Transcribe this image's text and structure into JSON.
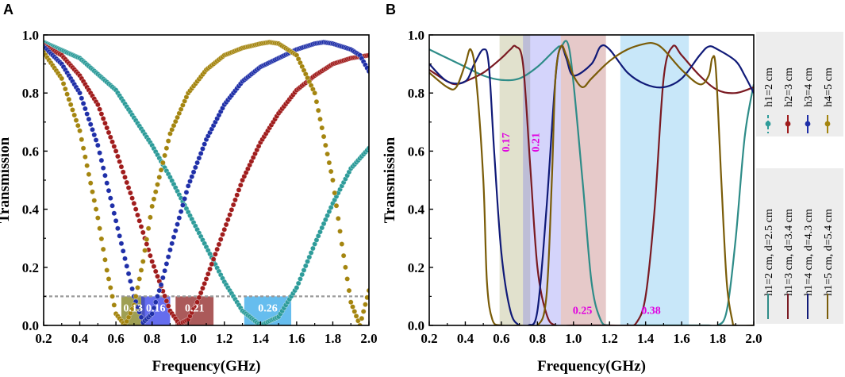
{
  "chart_data": [
    {
      "panel": "A",
      "type": "line",
      "xlabel": "Frequency(GHz)",
      "ylabel": "Transmission",
      "xlim": [
        0.2,
        2.0
      ],
      "ylim": [
        0.0,
        1.0
      ],
      "xticks": [
        "0.2",
        "0.4",
        "0.6",
        "0.8",
        "1.0",
        "1.2",
        "1.4",
        "1.6",
        "1.8",
        "2.0"
      ],
      "yticks": [
        "0.0",
        "0.2",
        "0.4",
        "0.6",
        "0.8",
        "1.0"
      ],
      "threshold": 0.1,
      "series": [
        {
          "name": "h1=2 cm",
          "color": "#2E9C9A",
          "x": [
            0.2,
            0.4,
            0.6,
            0.8,
            0.9,
            1.0,
            1.1,
            1.2,
            1.3,
            1.4,
            1.5,
            1.6,
            1.7,
            1.8,
            1.9,
            2.0
          ],
          "y": [
            0.975,
            0.92,
            0.81,
            0.62,
            0.51,
            0.39,
            0.27,
            0.15,
            0.05,
            0.0,
            0.03,
            0.13,
            0.28,
            0.42,
            0.54,
            0.61
          ]
        },
        {
          "name": "h2=3 cm",
          "color": "#A01C1C",
          "x": [
            0.2,
            0.3,
            0.4,
            0.5,
            0.6,
            0.7,
            0.8,
            0.9,
            0.95,
            1.0,
            1.05,
            1.1,
            1.2,
            1.3,
            1.4,
            1.5,
            1.6,
            1.7,
            1.8,
            1.9,
            2.0
          ],
          "y": [
            0.965,
            0.93,
            0.86,
            0.76,
            0.6,
            0.42,
            0.22,
            0.05,
            0.005,
            0.02,
            0.08,
            0.16,
            0.33,
            0.5,
            0.63,
            0.73,
            0.81,
            0.86,
            0.9,
            0.92,
            0.93
          ]
        },
        {
          "name": "h3=4 cm",
          "color": "#1F2FA8",
          "x": [
            0.2,
            0.3,
            0.4,
            0.5,
            0.6,
            0.7,
            0.75,
            0.8,
            0.85,
            0.9,
            1.0,
            1.1,
            1.2,
            1.3,
            1.4,
            1.5,
            1.6,
            1.7,
            1.75,
            1.8,
            1.9,
            1.95,
            2.0
          ],
          "y": [
            0.96,
            0.9,
            0.8,
            0.62,
            0.36,
            0.1,
            0.01,
            0.04,
            0.14,
            0.26,
            0.48,
            0.64,
            0.76,
            0.84,
            0.89,
            0.92,
            0.95,
            0.97,
            0.975,
            0.97,
            0.95,
            0.93,
            0.875
          ]
        },
        {
          "name": "h4=5 cm",
          "color": "#A4850F",
          "x": [
            0.2,
            0.3,
            0.4,
            0.5,
            0.55,
            0.6,
            0.65,
            0.7,
            0.75,
            0.8,
            0.9,
            1.0,
            1.1,
            1.2,
            1.3,
            1.4,
            1.45,
            1.5,
            1.6,
            1.7,
            1.8,
            1.85,
            1.9,
            1.95,
            2.0
          ],
          "y": [
            0.94,
            0.85,
            0.67,
            0.37,
            0.19,
            0.04,
            0.0,
            0.07,
            0.22,
            0.41,
            0.66,
            0.8,
            0.88,
            0.93,
            0.955,
            0.97,
            0.975,
            0.97,
            0.93,
            0.8,
            0.5,
            0.28,
            0.08,
            0.0,
            0.12
          ]
        }
      ],
      "bands": [
        {
          "label": "0.13",
          "x0": 0.63,
          "x1": 0.76,
          "color": "#7A7A10"
        },
        {
          "label": "0.16",
          "x0": 0.74,
          "x1": 0.9,
          "color": "#2A35E8"
        },
        {
          "label": "0.21",
          "x0": 0.93,
          "x1": 1.14,
          "color": "#8B1A1A"
        },
        {
          "label": "0.26",
          "x0": 1.31,
          "x1": 1.57,
          "color": "#2BA3E8"
        }
      ]
    },
    {
      "panel": "B",
      "type": "line",
      "xlabel": "Frequency(GHz)",
      "ylabel": "Transmission",
      "xlim": [
        0.2,
        2.0
      ],
      "ylim": [
        0.0,
        1.0
      ],
      "xticks": [
        "0.2",
        "0.4",
        "0.6",
        "0.8",
        "1.0",
        "1.2",
        "1.4",
        "1.6",
        "1.8",
        "2.0"
      ],
      "yticks": [
        "0.0",
        "0.2",
        "0.4",
        "0.6",
        "0.8",
        "1.0"
      ],
      "series": [
        {
          "name": "h1=2 cm, d=2.5 cm",
          "color": "#2E8C88",
          "x": [
            0.2,
            0.3,
            0.4,
            0.5,
            0.6,
            0.7,
            0.8,
            0.9,
            0.93,
            0.98,
            1.05,
            1.1,
            1.15,
            1.2,
            1.3,
            1.4,
            1.45,
            1.5,
            1.6,
            1.7,
            1.75,
            1.8,
            1.85,
            1.9,
            1.95,
            2.0
          ],
          "y": [
            0.95,
            0.92,
            0.89,
            0.86,
            0.845,
            0.85,
            0.89,
            0.95,
            0.96,
            0.94,
            0.5,
            0.15,
            0.02,
            0.0,
            0.0,
            0.0,
            0.0,
            0.0,
            0.0,
            0.0,
            0.0,
            0.0,
            0.05,
            0.3,
            0.65,
            0.83
          ]
        },
        {
          "name": "h1=3 cm, d=3.4 cm",
          "color": "#7A1A22",
          "x": [
            0.2,
            0.3,
            0.35,
            0.4,
            0.5,
            0.6,
            0.65,
            0.68,
            0.72,
            0.76,
            0.8,
            0.85,
            0.9,
            1.0,
            1.2,
            1.3,
            1.35,
            1.4,
            1.45,
            1.5,
            1.55,
            1.6,
            1.7,
            1.8,
            1.9,
            2.0
          ],
          "y": [
            0.88,
            0.84,
            0.83,
            0.84,
            0.87,
            0.92,
            0.95,
            0.96,
            0.9,
            0.55,
            0.2,
            0.04,
            0.0,
            0.0,
            0.0,
            0.0,
            0.01,
            0.1,
            0.4,
            0.85,
            0.96,
            0.93,
            0.86,
            0.81,
            0.8,
            0.82
          ]
        },
        {
          "name": "h1=4 cm, d=4.3 cm",
          "color": "#101A78",
          "x": [
            0.2,
            0.3,
            0.4,
            0.45,
            0.5,
            0.53,
            0.56,
            0.6,
            0.65,
            0.7,
            0.75,
            0.8,
            0.85,
            0.9,
            0.93,
            0.96,
            1.0,
            1.1,
            1.15,
            1.2,
            1.3,
            1.4,
            1.5,
            1.6,
            1.7,
            1.75,
            1.8,
            1.9,
            1.95,
            2.0
          ],
          "y": [
            0.9,
            0.84,
            0.84,
            0.9,
            0.95,
            0.9,
            0.6,
            0.25,
            0.05,
            0.0,
            0.0,
            0.05,
            0.4,
            0.85,
            0.96,
            0.92,
            0.86,
            0.9,
            0.96,
            0.95,
            0.87,
            0.83,
            0.82,
            0.85,
            0.93,
            0.96,
            0.95,
            0.91,
            0.86,
            0.8
          ]
        },
        {
          "name": "h1=5 cm, d=5.4 cm",
          "color": "#7A5C08",
          "x": [
            0.2,
            0.3,
            0.35,
            0.4,
            0.43,
            0.46,
            0.5,
            0.52,
            0.55,
            0.6,
            0.7,
            0.8,
            0.85,
            0.88,
            0.9,
            0.93,
            0.96,
            1.0,
            1.05,
            1.1,
            1.2,
            1.3,
            1.4,
            1.45,
            1.5,
            1.6,
            1.7,
            1.75,
            1.77,
            1.79,
            1.82,
            1.85,
            1.88,
            1.9,
            2.0
          ],
          "y": [
            0.87,
            0.82,
            0.82,
            0.9,
            0.95,
            0.85,
            0.5,
            0.15,
            0.02,
            0.0,
            0.0,
            0.0,
            0.1,
            0.5,
            0.85,
            0.96,
            0.93,
            0.86,
            0.82,
            0.85,
            0.91,
            0.95,
            0.97,
            0.97,
            0.95,
            0.88,
            0.83,
            0.86,
            0.92,
            0.88,
            0.5,
            0.15,
            0.02,
            0.0,
            0.0
          ]
        }
      ],
      "bands": [
        {
          "label": "0.17",
          "x0": 0.59,
          "x1": 0.76,
          "color": "#8C8C3C",
          "label_x": 0.645,
          "label_y": 0.63
        },
        {
          "label": "0.21",
          "x0": 0.72,
          "x1": 0.93,
          "color": "#5A5AF0",
          "label_x": 0.81,
          "label_y": 0.63
        },
        {
          "label": "0.25",
          "x0": 0.93,
          "x1": 1.18,
          "color": "#A03030",
          "label_x": 1.05,
          "label_y": 0.04
        },
        {
          "label": "0.38",
          "x0": 1.26,
          "x1": 1.64,
          "color": "#2BA3E8",
          "label_x": 1.43,
          "label_y": 0.04
        }
      ],
      "legend_top": [
        "h1=2 cm",
        "h2=3 cm",
        "h3=4 cm",
        "h4=5 cm"
      ],
      "legend_bottom": [
        "h1=2 cm, d=2.5 cm",
        "h1=3 cm, d=3.4 cm",
        "h1=4 cm, d=4.3 cm",
        "h1=5 cm, d=5.4 cm"
      ]
    }
  ],
  "labels": {
    "panel_a": "A",
    "panel_b": "B"
  },
  "colors": {
    "axis": "#000000",
    "threshold": "#9A9A9A",
    "band_label_a": "#FFFFFF",
    "band_label_b": "#E000E0",
    "legend_bg": "#EDEDED"
  }
}
